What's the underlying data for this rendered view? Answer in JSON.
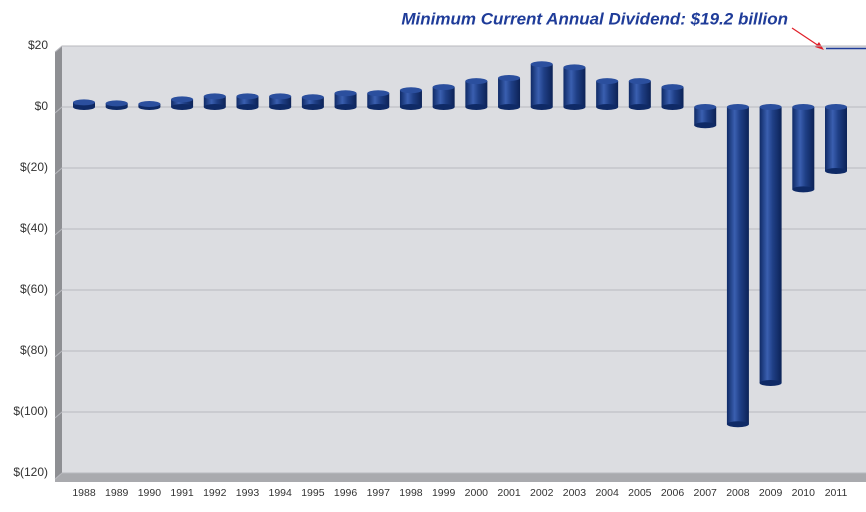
{
  "chart_data": {
    "type": "bar",
    "annotation": {
      "text": "Minimum Current Annual Dividend:  $19.2 billion",
      "value": 19.2
    },
    "categories": [
      "1988",
      "1989",
      "1990",
      "1991",
      "1992",
      "1993",
      "1994",
      "1995",
      "1996",
      "1997",
      "1998",
      "1999",
      "2000",
      "2001",
      "2002",
      "2003",
      "2004",
      "2005",
      "2006",
      "2007",
      "2008",
      "2009",
      "2010",
      "2011"
    ],
    "values": [
      1.5,
      1.2,
      1,
      2.5,
      3.5,
      3.5,
      3.5,
      3.2,
      4.5,
      4.5,
      5.5,
      6.5,
      8.5,
      9.5,
      14,
      13,
      8.5,
      8.5,
      6.5,
      -6,
      -104,
      -90.5,
      -27,
      -21
    ],
    "color": "#1f3f86",
    "ylim": [
      -120,
      20
    ],
    "yticks": [
      {
        "value": 20,
        "label": "$20"
      },
      {
        "value": 0,
        "label": "$0"
      },
      {
        "value": -20,
        "label": "$(20)"
      },
      {
        "value": -40,
        "label": "$(40)"
      },
      {
        "value": -60,
        "label": "$(60)"
      },
      {
        "value": -80,
        "label": "$(80)"
      },
      {
        "value": -100,
        "label": "$(100)"
      },
      {
        "value": -120,
        "label": "$(120)"
      }
    ],
    "grid": true
  }
}
